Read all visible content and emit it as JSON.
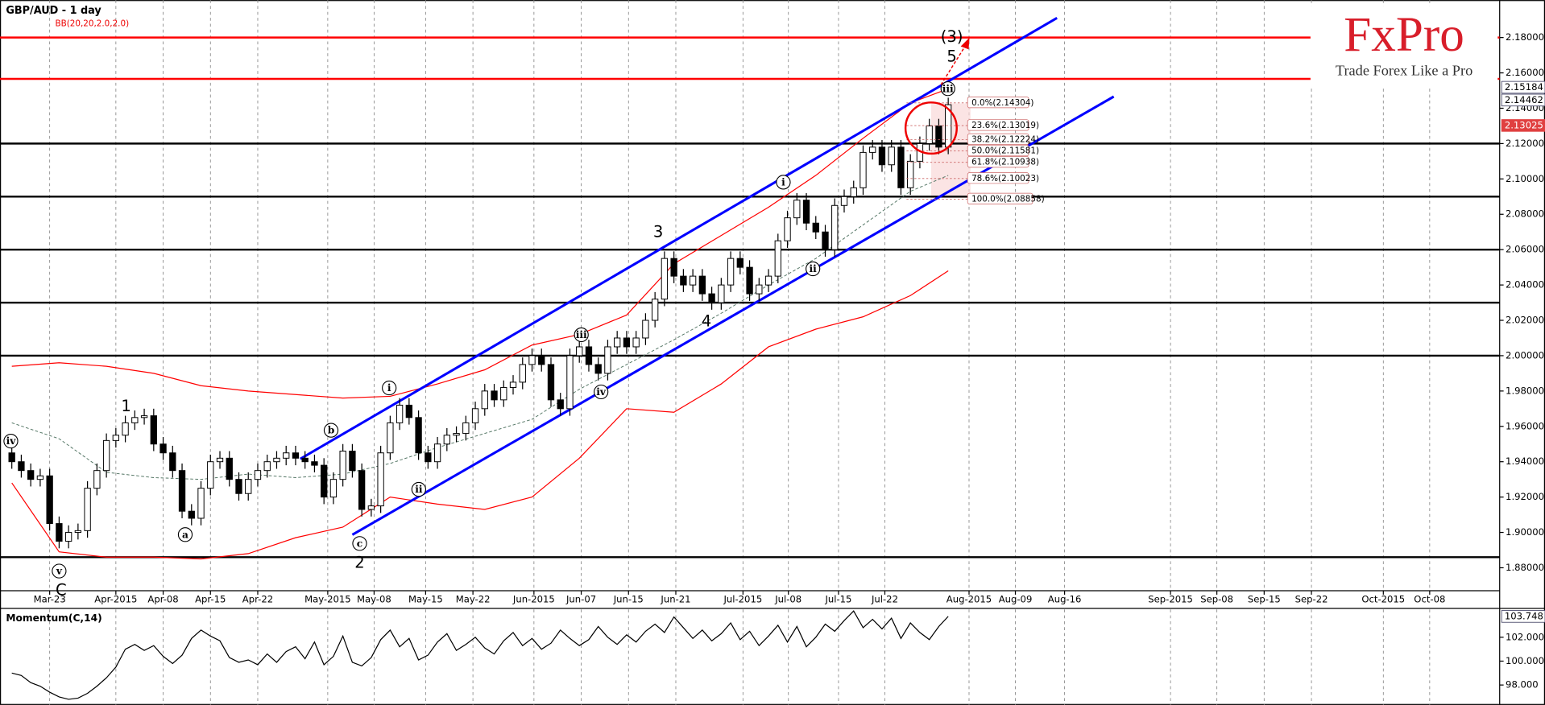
{
  "chart_data": {
    "type": "candlestick",
    "title": "GBP/AUD - 1 day",
    "indicator_label": "BB(20,20,2.0,2.0)",
    "logo": "FxPro",
    "tagline": "Trade Forex Like a Pro",
    "xlim": [
      -1.25,
      157.3
    ],
    "ylim": [
      1.867,
      2.2012
    ],
    "grid": true,
    "up_color": "#ffffff",
    "down_color": "#000000",
    "xticks": [
      {
        "value": 4,
        "label": "Mar-23"
      },
      {
        "value": 11,
        "label": "Apr-2015"
      },
      {
        "value": 16,
        "label": "Apr-08"
      },
      {
        "value": 21,
        "label": "Apr-15"
      },
      {
        "value": 26,
        "label": "Apr-22"
      },
      {
        "value": 33.4,
        "label": "May-2015"
      },
      {
        "value": 38.3,
        "label": "May-08"
      },
      {
        "value": 43.75,
        "label": "May-15"
      },
      {
        "value": 48.75,
        "label": "May-22"
      },
      {
        "value": 55.2,
        "label": "Jun-2015"
      },
      {
        "value": 60.2,
        "label": "Jun-07"
      },
      {
        "value": 65.2,
        "label": "Jun-15"
      },
      {
        "value": 70.2,
        "label": "Jun-21"
      },
      {
        "value": 77.3,
        "label": "Jul-2015"
      },
      {
        "value": 82.1,
        "label": "Jul-08"
      },
      {
        "value": 87.4,
        "label": "Jul-15"
      },
      {
        "value": 92.3,
        "label": "Jul-22"
      },
      {
        "value": 101.2,
        "label": "Aug-2015"
      },
      {
        "value": 106.1,
        "label": "Aug-09"
      },
      {
        "value": 111.3,
        "label": "Aug-16"
      },
      {
        "value": 122.5,
        "label": "Sep-2015"
      },
      {
        "value": 127.4,
        "label": "Sep-08"
      },
      {
        "value": 132.4,
        "label": "Sep-15"
      },
      {
        "value": 137.4,
        "label": "Sep-22"
      },
      {
        "value": 145.0,
        "label": "Oct-2015"
      },
      {
        "value": 149.9,
        "label": "Oct-08"
      }
    ],
    "yticks": [
      {
        "value": 1.88,
        "label": "1.88000"
      },
      {
        "value": 1.9,
        "label": "1.90000"
      },
      {
        "value": 1.92,
        "label": "1.92000"
      },
      {
        "value": 1.94,
        "label": "1.94000"
      },
      {
        "value": 1.96,
        "label": "1.96000"
      },
      {
        "value": 1.98,
        "label": "1.98000"
      },
      {
        "value": 2.0,
        "label": "2.00000"
      },
      {
        "value": 2.02,
        "label": "2.02000"
      },
      {
        "value": 2.04,
        "label": "2.04000"
      },
      {
        "value": 2.06,
        "label": "2.06000"
      },
      {
        "value": 2.08,
        "label": "2.08000"
      },
      {
        "value": 2.1,
        "label": "2.10000"
      },
      {
        "value": 2.12,
        "label": "2.12000"
      },
      {
        "value": 2.14,
        "label": "2.14000"
      },
      {
        "value": 2.16,
        "label": "2.16000"
      },
      {
        "value": 2.18,
        "label": "2.18000"
      }
    ],
    "ohlc": [
      [
        1.945,
        1.949,
        1.936,
        1.94
      ],
      [
        1.94,
        1.944,
        1.931,
        1.935
      ],
      [
        1.935,
        1.939,
        1.926,
        1.93
      ],
      [
        1.93,
        1.936,
        1.926,
        1.932
      ],
      [
        1.932,
        1.936,
        1.901,
        1.905
      ],
      [
        1.905,
        1.909,
        1.891,
        1.895
      ],
      [
        1.895,
        1.904,
        1.891,
        1.9
      ],
      [
        1.9,
        1.905,
        1.896,
        1.901
      ],
      [
        1.901,
        1.929,
        1.897,
        1.925
      ],
      [
        1.925,
        1.939,
        1.921,
        1.935
      ],
      [
        1.935,
        1.956,
        1.931,
        1.952
      ],
      [
        1.952,
        1.959,
        1.948,
        1.955
      ],
      [
        1.955,
        1.966,
        1.951,
        1.962
      ],
      [
        1.962,
        1.969,
        1.958,
        1.965
      ],
      [
        1.965,
        1.97,
        1.961,
        1.966
      ],
      [
        1.966,
        1.97,
        1.946,
        1.95
      ],
      [
        1.95,
        1.954,
        1.941,
        1.945
      ],
      [
        1.945,
        1.949,
        1.931,
        1.935
      ],
      [
        1.935,
        1.939,
        1.908,
        1.912
      ],
      [
        1.912,
        1.916,
        1.904,
        1.908
      ],
      [
        1.908,
        1.929,
        1.904,
        1.925
      ],
      [
        1.925,
        1.944,
        1.921,
        1.94
      ],
      [
        1.94,
        1.946,
        1.936,
        1.942
      ],
      [
        1.942,
        1.946,
        1.926,
        1.93
      ],
      [
        1.93,
        1.934,
        1.918,
        1.922
      ],
      [
        1.922,
        1.934,
        1.918,
        1.93
      ],
      [
        1.93,
        1.939,
        1.926,
        1.935
      ],
      [
        1.935,
        1.944,
        1.931,
        1.94
      ],
      [
        1.94,
        1.946,
        1.936,
        1.942
      ],
      [
        1.942,
        1.949,
        1.938,
        1.945
      ],
      [
        1.945,
        1.949,
        1.938,
        1.942
      ],
      [
        1.942,
        1.946,
        1.936,
        1.94
      ],
      [
        1.94,
        1.944,
        1.934,
        1.938
      ],
      [
        1.938,
        1.942,
        1.916,
        1.92
      ],
      [
        1.92,
        1.934,
        1.916,
        1.93
      ],
      [
        1.93,
        1.95,
        1.926,
        1.946
      ],
      [
        1.946,
        1.95,
        1.931,
        1.935
      ],
      [
        1.935,
        1.939,
        1.909,
        1.913
      ],
      [
        1.913,
        1.919,
        1.909,
        1.915
      ],
      [
        1.915,
        1.949,
        1.911,
        1.945
      ],
      [
        1.945,
        1.966,
        1.941,
        1.962
      ],
      [
        1.962,
        1.976,
        1.958,
        1.972
      ],
      [
        1.972,
        1.976,
        1.961,
        1.965
      ],
      [
        1.965,
        1.969,
        1.941,
        1.945
      ],
      [
        1.945,
        1.949,
        1.936,
        1.94
      ],
      [
        1.94,
        1.954,
        1.936,
        1.95
      ],
      [
        1.95,
        1.959,
        1.946,
        1.955
      ],
      [
        1.955,
        1.96,
        1.951,
        1.956
      ],
      [
        1.956,
        1.966,
        1.952,
        1.962
      ],
      [
        1.962,
        1.974,
        1.958,
        1.97
      ],
      [
        1.97,
        1.984,
        1.966,
        1.98
      ],
      [
        1.98,
        1.984,
        1.971,
        1.975
      ],
      [
        1.975,
        1.986,
        1.971,
        1.982
      ],
      [
        1.982,
        1.989,
        1.978,
        1.985
      ],
      [
        1.985,
        1.999,
        1.981,
        1.995
      ],
      [
        1.995,
        2.004,
        1.991,
        2.0
      ],
      [
        2.0,
        2.004,
        1.991,
        1.995
      ],
      [
        1.995,
        1.999,
        1.971,
        1.975
      ],
      [
        1.975,
        1.979,
        1.966,
        1.97
      ],
      [
        1.97,
        2.004,
        1.966,
        2.0
      ],
      [
        2.0,
        2.009,
        1.996,
        2.005
      ],
      [
        2.005,
        2.009,
        1.991,
        1.995
      ],
      [
        1.995,
        1.999,
        1.986,
        1.99
      ],
      [
        1.99,
        2.009,
        1.986,
        2.005
      ],
      [
        2.005,
        2.014,
        2.001,
        2.01
      ],
      [
        2.01,
        2.014,
        2.001,
        2.005
      ],
      [
        2.005,
        2.014,
        2.001,
        2.01
      ],
      [
        2.01,
        2.024,
        2.006,
        2.02
      ],
      [
        2.02,
        2.036,
        2.016,
        2.032
      ],
      [
        2.032,
        2.059,
        2.028,
        2.055
      ],
      [
        2.055,
        2.059,
        2.041,
        2.045
      ],
      [
        2.045,
        2.049,
        2.036,
        2.04
      ],
      [
        2.04,
        2.049,
        2.036,
        2.045
      ],
      [
        2.045,
        2.049,
        2.031,
        2.035
      ],
      [
        2.035,
        2.039,
        2.026,
        2.03
      ],
      [
        2.03,
        2.044,
        2.026,
        2.04
      ],
      [
        2.04,
        2.059,
        2.036,
        2.055
      ],
      [
        2.055,
        2.059,
        2.046,
        2.05
      ],
      [
        2.05,
        2.054,
        2.031,
        2.035
      ],
      [
        2.035,
        2.044,
        2.031,
        2.04
      ],
      [
        2.04,
        2.049,
        2.036,
        2.045
      ],
      [
        2.045,
        2.069,
        2.041,
        2.065
      ],
      [
        2.065,
        2.082,
        2.061,
        2.078
      ],
      [
        2.078,
        2.092,
        2.074,
        2.088
      ],
      [
        2.088,
        2.092,
        2.071,
        2.075
      ],
      [
        2.075,
        2.079,
        2.066,
        2.07
      ],
      [
        2.07,
        2.074,
        2.056,
        2.06
      ],
      [
        2.06,
        2.089,
        2.056,
        2.085
      ],
      [
        2.085,
        2.094,
        2.081,
        2.09
      ],
      [
        2.09,
        2.099,
        2.086,
        2.095
      ],
      [
        2.095,
        2.119,
        2.091,
        2.115
      ],
      [
        2.115,
        2.122,
        2.111,
        2.118
      ],
      [
        2.118,
        2.122,
        2.104,
        2.108
      ],
      [
        2.108,
        2.122,
        2.104,
        2.118
      ],
      [
        2.118,
        2.122,
        2.091,
        2.095
      ],
      [
        2.095,
        2.114,
        2.091,
        2.11
      ],
      [
        2.11,
        2.124,
        2.106,
        2.12
      ],
      [
        2.12,
        2.134,
        2.116,
        2.13
      ],
      [
        2.13,
        2.134,
        2.114,
        2.118
      ],
      [
        2.118,
        2.146,
        2.114,
        2.142
      ]
    ],
    "bollinger": {
      "color": "#ff0000",
      "x": [
        0,
        5,
        10,
        15,
        20,
        25,
        30,
        35,
        40,
        45,
        50,
        55,
        60,
        65,
        70,
        75,
        80,
        85,
        90,
        95,
        99
      ],
      "upper": [
        1.994,
        1.996,
        1.994,
        1.99,
        1.983,
        1.98,
        1.978,
        1.976,
        1.977,
        1.984,
        1.992,
        2.006,
        2.012,
        2.023,
        2.052,
        2.068,
        2.084,
        2.102,
        2.123,
        2.143,
        2.151
      ],
      "middle": [
        1.962,
        1.953,
        1.934,
        1.931,
        1.93,
        1.933,
        1.931,
        1.933,
        1.939,
        1.948,
        1.956,
        1.964,
        1.981,
        1.995,
        2.009,
        2.024,
        2.04,
        2.055,
        2.074,
        2.093,
        2.102
      ],
      "lower": [
        1.928,
        1.889,
        1.886,
        1.886,
        1.885,
        1.888,
        1.897,
        1.903,
        1.92,
        1.916,
        1.913,
        1.92,
        1.942,
        1.97,
        1.968,
        1.984,
        2.005,
        2.015,
        2.022,
        2.034,
        2.048
      ]
    },
    "levels": [
      {
        "value": 2.18,
        "color": "#ff0000"
      },
      {
        "value": 2.1566,
        "color": "#ff0000"
      },
      {
        "value": 2.12,
        "color": "#000000"
      },
      {
        "value": 2.09,
        "color": "#000000"
      },
      {
        "value": 2.06,
        "color": "#000000"
      },
      {
        "value": 2.03,
        "color": "#000000"
      },
      {
        "value": 2.0,
        "color": "#000000"
      },
      {
        "value": 1.886,
        "color": "#000000"
      }
    ],
    "channel_color": "#0000ff",
    "channel": [
      {
        "x": [
          30.5,
          110.5
        ],
        "values": [
          1.9416,
          2.1911
        ]
      },
      {
        "x": [
          36,
          116.5
        ],
        "values": [
          1.8987,
          2.1466
        ]
      }
    ],
    "fib_levels": [
      {
        "value": 2.14304,
        "label": "0.0%(2.14304)"
      },
      {
        "value": 2.13019,
        "label": "23.6%(2.13019)"
      },
      {
        "value": 2.12224,
        "label": "38.2%(2.12224)"
      },
      {
        "value": 2.11581,
        "label": "50.0%(2.11581)"
      },
      {
        "value": 2.10938,
        "label": "61.8%(2.10938)"
      },
      {
        "value": 2.10023,
        "label": "78.6%(2.10023)"
      },
      {
        "value": 2.08858,
        "label": "100.0%(2.08858)"
      }
    ],
    "price_tags": [
      {
        "value": 2.15184,
        "label": "2.15184"
      },
      {
        "value": 2.14462,
        "label": "2.14462"
      },
      {
        "value": 2.13025,
        "label": "2.13025"
      }
    ],
    "wave_labels": [
      "1",
      "2",
      "3",
      "4",
      "5",
      "(3)",
      "C"
    ],
    "circled_labels": [
      "iv",
      "v",
      "a",
      "b",
      "c",
      "i",
      "ii",
      "iii",
      "iv",
      "i",
      "ii",
      "iii"
    ],
    "momentum": {
      "title": "Momentum(C,14)",
      "color": "#000000",
      "ylim": [
        96.33,
        104.33
      ],
      "yticks": [
        {
          "value": 98,
          "label": "98.000"
        },
        {
          "value": 100,
          "label": "100.000"
        },
        {
          "value": 102,
          "label": "102.000"
        }
      ],
      "last": {
        "value": 103.748,
        "label": "103.748"
      },
      "values": [
        99.0,
        98.8,
        98.2,
        97.9,
        97.4,
        97.0,
        96.8,
        96.9,
        97.3,
        97.9,
        98.6,
        99.5,
        101.0,
        101.4,
        100.9,
        101.3,
        100.4,
        99.8,
        100.5,
        101.9,
        102.6,
        102.1,
        101.7,
        100.3,
        99.9,
        100.1,
        99.7,
        100.6,
        99.9,
        100.8,
        101.2,
        100.2,
        101.6,
        99.7,
        100.4,
        102.1,
        99.9,
        99.6,
        100.3,
        101.8,
        102.6,
        101.2,
        101.9,
        100.1,
        100.5,
        101.6,
        102.3,
        100.9,
        101.4,
        102.0,
        101.1,
        100.6,
        101.7,
        102.4,
        101.3,
        101.9,
        101.0,
        101.5,
        102.6,
        101.9,
        101.3,
        101.8,
        102.9,
        102.0,
        101.4,
        102.2,
        101.6,
        102.5,
        103.1,
        102.4,
        103.7,
        102.8,
        101.9,
        102.6,
        101.7,
        102.3,
        103.2,
        101.8,
        102.5,
        101.3,
        102.1,
        103.0,
        101.6,
        102.9,
        101.2,
        102.0,
        103.1,
        102.5,
        103.4,
        104.2,
        102.8,
        103.5,
        102.7,
        103.6,
        101.9,
        103.2,
        102.4,
        101.8,
        102.9,
        103.748
      ]
    }
  }
}
